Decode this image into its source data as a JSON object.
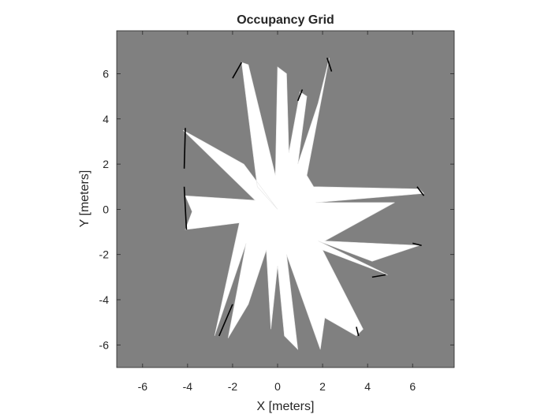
{
  "chart_data": {
    "type": "heatmap",
    "title": "Occupancy Grid",
    "xlabel": "X [meters]",
    "ylabel": "Y [meters]",
    "xlim": [
      -7.15,
      7.85
    ],
    "ylim": [
      -7.0,
      7.9
    ],
    "xticks": [
      -6,
      -4,
      -2,
      0,
      2,
      4,
      6
    ],
    "yticks": [
      -6,
      -4,
      -2,
      0,
      2,
      4,
      6
    ],
    "grid": false,
    "colors": {
      "unknown": "#808080",
      "free": "#ffffff",
      "occupied": "#000000",
      "axes": "#262626"
    },
    "free_polygon": [
      [
        0,
        0
      ],
      [
        -0.9,
        1.0
      ],
      [
        -1.6,
        6.5
      ],
      [
        -1.3,
        6.4
      ],
      [
        -0.1,
        1.5
      ],
      [
        0,
        6.3
      ],
      [
        0.4,
        6.0
      ],
      [
        0.5,
        2.5
      ],
      [
        1.0,
        5.2
      ],
      [
        1.3,
        5.0
      ],
      [
        0.9,
        2.0
      ],
      [
        1.8,
        4.7
      ],
      [
        2.3,
        6.7
      ],
      [
        1.3,
        1.5
      ],
      [
        1.6,
        1.0
      ],
      [
        6.3,
        0.9
      ],
      [
        6.5,
        0.7
      ],
      [
        1.7,
        0.3
      ],
      [
        5.2,
        0.3
      ],
      [
        2.1,
        -1.4
      ],
      [
        6.3,
        -1.6
      ],
      [
        4.2,
        -2.3
      ],
      [
        1.8,
        -1.4
      ],
      [
        4.9,
        -2.9
      ],
      [
        2.0,
        -1.8
      ],
      [
        3.8,
        -5.3
      ],
      [
        3.5,
        -5.6
      ],
      [
        2.1,
        -4.8
      ],
      [
        1.9,
        -6.2
      ],
      [
        0.4,
        -2.0
      ],
      [
        0.9,
        -6.2
      ],
      [
        0.3,
        -5.6
      ],
      [
        0.0,
        -2.5
      ],
      [
        -0.3,
        -5.3
      ],
      [
        -0.5,
        -1.8
      ],
      [
        -1.3,
        -4.2
      ],
      [
        -2.2,
        -5.7
      ],
      [
        -1.4,
        -1.5
      ],
      [
        -2.8,
        -5.6
      ],
      [
        -1.7,
        -0.6
      ],
      [
        -4.1,
        -0.9
      ],
      [
        -3.8,
        -0.1
      ],
      [
        -4.1,
        0.6
      ],
      [
        -1.0,
        0.4
      ],
      [
        -4.2,
        3.5
      ],
      [
        -1.5,
        2.0
      ]
    ],
    "wall_segments": [
      [
        [
          -4.1,
          3.6
        ],
        [
          -4.15,
          1.8
        ]
      ],
      [
        [
          -4.15,
          1.0
        ],
        [
          -4.05,
          -0.9
        ]
      ],
      [
        [
          -2.6,
          -5.6
        ],
        [
          -2.0,
          -4.2
        ]
      ],
      [
        [
          -1.6,
          6.5
        ],
        [
          -2.0,
          5.8
        ]
      ],
      [
        [
          2.2,
          6.7
        ],
        [
          2.4,
          6.1
        ]
      ],
      [
        [
          0.9,
          4.8
        ],
        [
          1.1,
          5.3
        ]
      ],
      [
        [
          6.2,
          1.0
        ],
        [
          6.5,
          0.6
        ]
      ],
      [
        [
          4.2,
          -3.0
        ],
        [
          4.8,
          -2.9
        ]
      ],
      [
        [
          6.0,
          -1.5
        ],
        [
          6.4,
          -1.6
        ]
      ],
      [
        [
          3.5,
          -5.2
        ],
        [
          3.6,
          -5.6
        ]
      ]
    ]
  }
}
